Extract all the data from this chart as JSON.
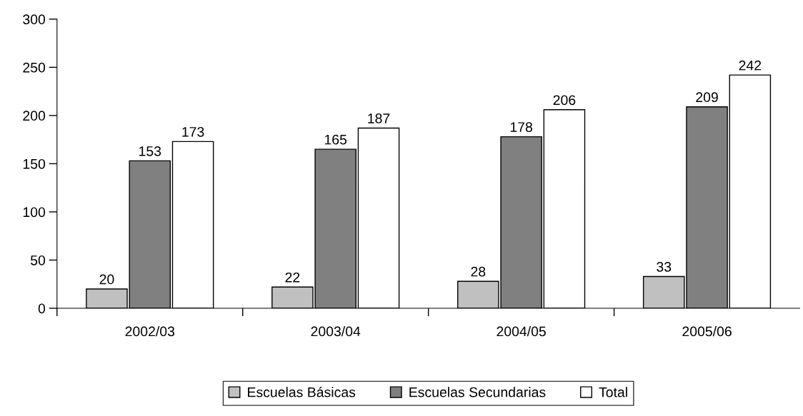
{
  "chart_data": {
    "type": "bar",
    "categories": [
      "2002/03",
      "2003/04",
      "2004/05",
      "2005/06"
    ],
    "series": [
      {
        "name": "Escuelas Básicas",
        "color": "#c0c0c0",
        "values": [
          20,
          22,
          28,
          33
        ]
      },
      {
        "name": "Escuelas Secundarias",
        "color": "#808080",
        "values": [
          153,
          165,
          178,
          209
        ]
      },
      {
        "name": "Total",
        "color": "#ffffff",
        "values": [
          173,
          187,
          206,
          242
        ]
      }
    ],
    "ylim": [
      0,
      300
    ],
    "yticks": [
      0,
      50,
      100,
      150,
      200,
      250,
      300
    ],
    "grid": false,
    "legend": "bottom",
    "data_labels": true
  }
}
